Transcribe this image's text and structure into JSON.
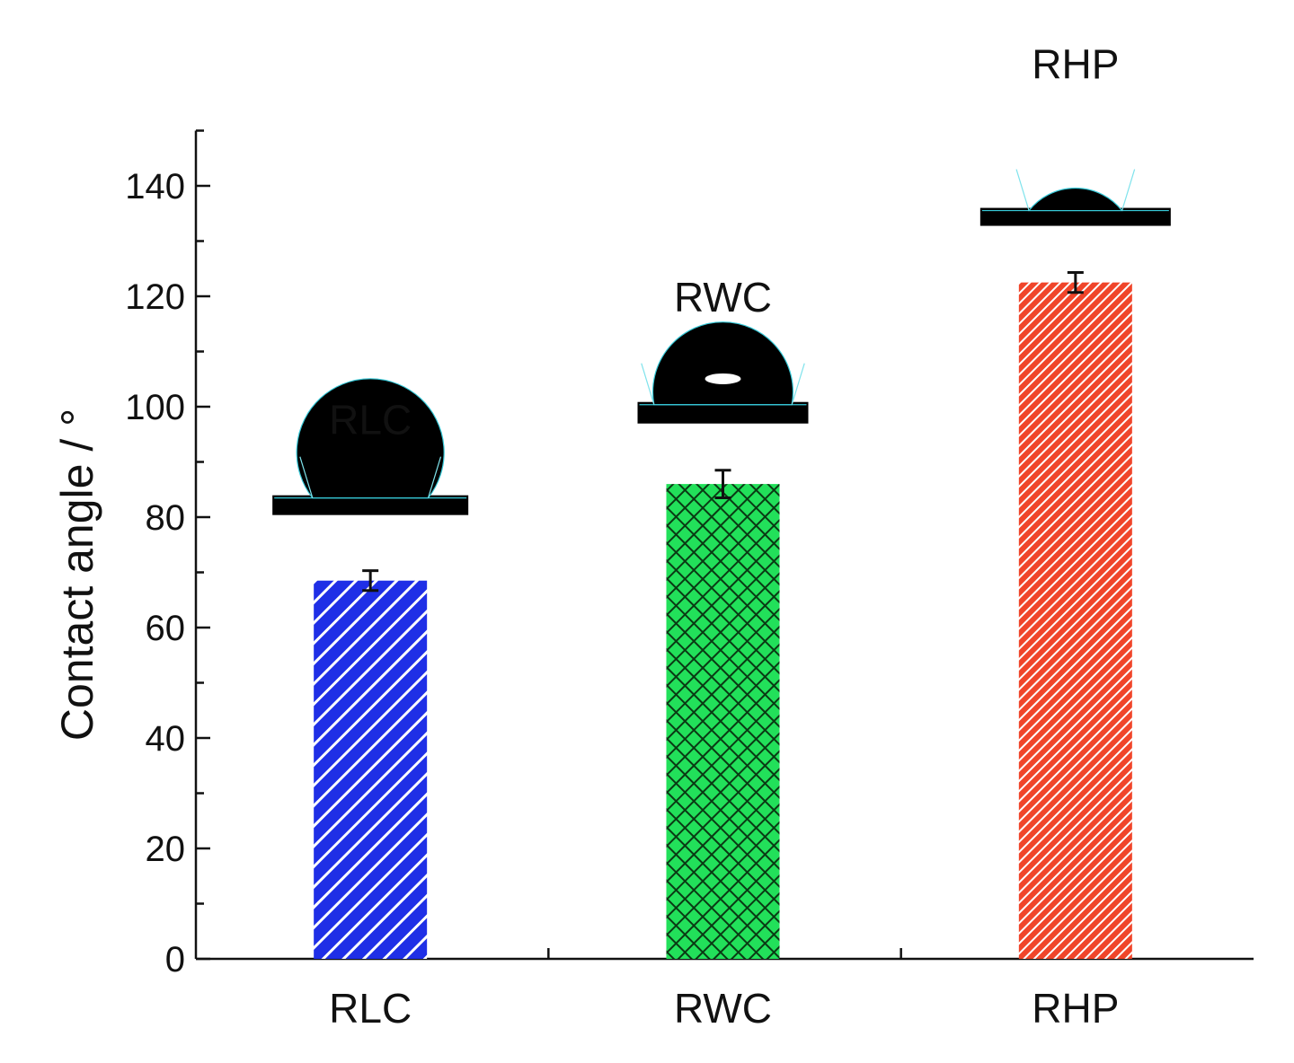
{
  "chart_data": {
    "type": "bar",
    "categories": [
      "RLC",
      "RWC",
      "RHP"
    ],
    "values": [
      68.5,
      86,
      122.5
    ],
    "errors": [
      1.8,
      2.5,
      1.8
    ],
    "colors": [
      "#1f2fe6",
      "#22e05a",
      "#f0452a"
    ],
    "patterns": [
      "diagonal",
      "crosshatch",
      "diagonal-dense"
    ],
    "ylabel": "Contact angle / °",
    "ylim": [
      0,
      150
    ],
    "yticks": [
      0,
      20,
      40,
      60,
      80,
      100,
      120,
      140
    ],
    "yticks_minor": [
      10,
      30,
      50,
      70,
      90,
      110,
      130,
      150
    ],
    "annotations": [
      {
        "label": "RLC",
        "content": "water-droplet-image"
      },
      {
        "label": "RWC",
        "content": "water-droplet-image"
      },
      {
        "label": "RHP",
        "content": "water-droplet-image"
      }
    ]
  }
}
